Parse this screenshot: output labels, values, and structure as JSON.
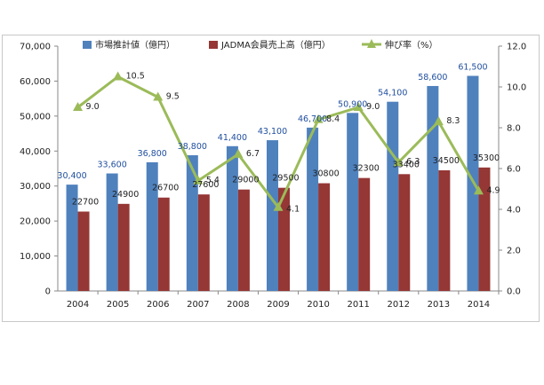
{
  "chart_data": {
    "type": "bar",
    "categories": [
      "2004",
      "2005",
      "2006",
      "2007",
      "2008",
      "2009",
      "2010",
      "2011",
      "2012",
      "2013",
      "2014"
    ],
    "series": [
      {
        "name": "市場推計値（億円）",
        "kind": "bar",
        "axis": "left",
        "color": "#4f81bd",
        "values": [
          30400,
          33600,
          36800,
          38800,
          41400,
          43100,
          46700,
          50900,
          54100,
          58600,
          61500
        ],
        "labels": [
          "30,400",
          "33,600",
          "36,800",
          "38,800",
          "41,400",
          "43,100",
          "46,700",
          "50,900",
          "54,100",
          "58,600",
          "61,500"
        ]
      },
      {
        "name": "JADMA会員売上高（億円）",
        "kind": "bar",
        "axis": "left",
        "color": "#953735",
        "values": [
          22700,
          24900,
          26700,
          27600,
          29000,
          29500,
          30800,
          32300,
          33400,
          34500,
          35300
        ],
        "labels": [
          "22700",
          "24900",
          "26700",
          "27600",
          "29000",
          "29500",
          "30800",
          "32300",
          "33400",
          "34500",
          "35300"
        ]
      },
      {
        "name": "伸び率（%）",
        "kind": "line",
        "axis": "right",
        "color": "#9bbb59",
        "values": [
          9.0,
          10.5,
          9.5,
          5.4,
          6.7,
          4.1,
          8.4,
          9.0,
          6.3,
          8.3,
          4.9
        ],
        "labels": [
          "9.0",
          "10.5",
          "9.5",
          "5.4",
          "6.7",
          "4.1",
          "8.4",
          "9.0",
          "6.3",
          "8.3",
          "4.9"
        ]
      }
    ],
    "y_left": {
      "min": 0,
      "max": 70000,
      "step": 10000,
      "tick_labels": [
        "0",
        "10,000",
        "20,000",
        "30,000",
        "40,000",
        "50,000",
        "60,000",
        "70,000"
      ]
    },
    "y_right": {
      "min": 0,
      "max": 12,
      "step": 2,
      "tick_labels": [
        "0.0",
        "2.0",
        "4.0",
        "6.0",
        "8.0",
        "10.0",
        "12.0"
      ]
    },
    "legend_position": "top",
    "grid": false
  }
}
